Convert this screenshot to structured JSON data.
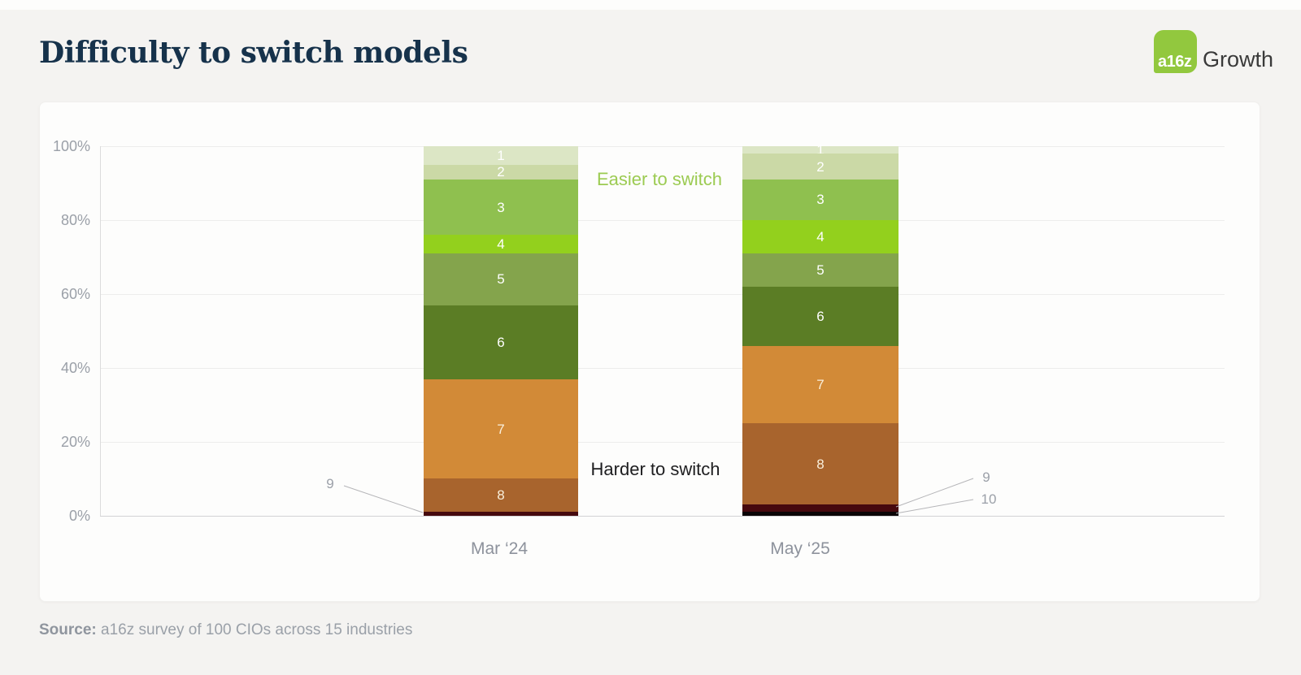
{
  "page": {
    "title": "Difficulty to switch models",
    "source_label": "Source:",
    "source_text": " a16z survey of 100 CIOs across 15 industries"
  },
  "logo": {
    "mark": "a16z",
    "brand": "Growth",
    "mark_color": "#92c83e"
  },
  "chart_data": {
    "type": "bar",
    "subtype": "percent-stacked-column",
    "title": "Difficulty to switch models",
    "categories": [
      "Mar ‘24",
      "May ‘25"
    ],
    "unit": "% of respondents",
    "ylim": [
      0,
      100
    ],
    "grid": true,
    "legend": "none",
    "yticks": [
      "0%",
      "20%",
      "40%",
      "60%",
      "80%",
      "100%"
    ],
    "series": [
      {
        "name": "1",
        "values": [
          5,
          2
        ],
        "color": "#dce6c5",
        "label_color": "#ffffff"
      },
      {
        "name": "2",
        "values": [
          4,
          7
        ],
        "color": "#cbd9a6",
        "label_color": "#ffffff"
      },
      {
        "name": "3",
        "values": [
          15,
          11
        ],
        "color": "#8fc04f",
        "label_color": "#ffffff"
      },
      {
        "name": "4",
        "values": [
          5,
          9
        ],
        "color": "#93d01d",
        "label_color": "#ffffff"
      },
      {
        "name": "5",
        "values": [
          14,
          9
        ],
        "color": "#84a44c",
        "label_color": "#ffffff"
      },
      {
        "name": "6",
        "values": [
          20,
          16
        ],
        "color": "#5b7d25",
        "label_color": "#ffffff"
      },
      {
        "name": "7",
        "values": [
          27,
          21
        ],
        "color": "#d28a37",
        "label_color": "#f9efdb"
      },
      {
        "name": "8",
        "values": [
          9,
          22
        ],
        "color": "#a8642d",
        "label_color": "#f9efdb"
      },
      {
        "name": "9",
        "values": [
          1,
          2
        ],
        "color": "#46090e",
        "callout": true
      },
      {
        "name": "10",
        "values": [
          0,
          1
        ],
        "color": "#0b0506",
        "callout": true
      }
    ],
    "annotations": [
      {
        "id": "easier",
        "text": "Easier to switch",
        "color": "#9ccb52"
      },
      {
        "id": "harder",
        "text": "Harder to switch",
        "color": "#1d1d1f"
      }
    ],
    "callout_labels": {
      "mar24_9": "9",
      "may25_9": "9",
      "may25_10": "10"
    }
  }
}
